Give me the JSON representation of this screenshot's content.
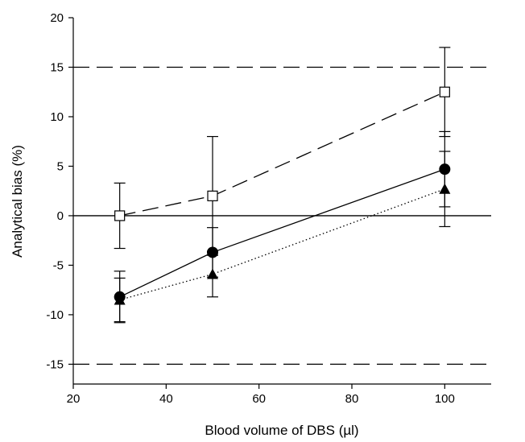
{
  "chart_data": {
    "type": "line",
    "title": "",
    "xlabel": "Blood volume of DBS (µl)",
    "ylabel": "Analytical bias (%)",
    "xlim": [
      20,
      110
    ],
    "ylim": [
      -17,
      20
    ],
    "xticks": [
      20,
      40,
      60,
      80,
      100
    ],
    "yticks": [
      -15,
      -10,
      -5,
      0,
      5,
      10,
      15,
      20
    ],
    "grid": false,
    "legend": "none",
    "reference_lines": [
      {
        "y": 15,
        "style": "dashed"
      },
      {
        "y": 0,
        "style": "solid"
      },
      {
        "y": -15,
        "style": "dashed"
      }
    ],
    "series": [
      {
        "marker": "open-square",
        "line_style": "long-dash",
        "x": [
          30,
          50,
          100
        ],
        "y": [
          0,
          2,
          12.5
        ],
        "error": [
          3.3,
          6.0,
          4.5
        ]
      },
      {
        "marker": "filled-circle",
        "line_style": "solid",
        "x": [
          30,
          50,
          100
        ],
        "y": [
          -8.2,
          -3.7,
          4.7
        ],
        "error": [
          2.6,
          2.5,
          3.8
        ]
      },
      {
        "marker": "filled-triangle",
        "line_style": "dotted",
        "x": [
          30,
          50,
          100
        ],
        "y": [
          -8.5,
          -5.9,
          2.7
        ],
        "error": [
          2.2,
          2.3,
          3.8
        ]
      }
    ]
  }
}
